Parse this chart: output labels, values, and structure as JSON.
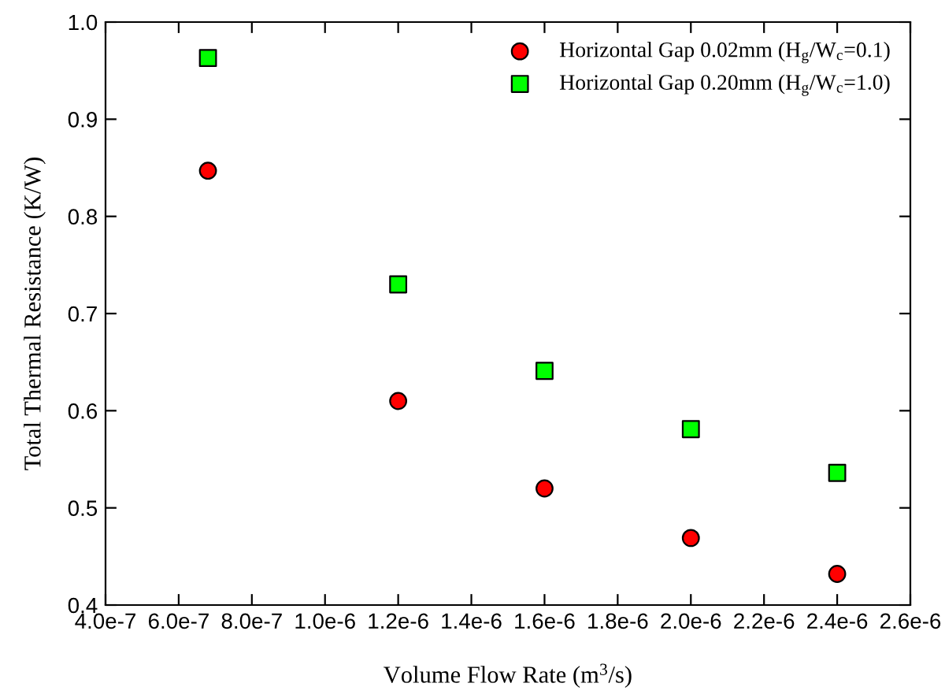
{
  "chart_data": {
    "type": "scatter",
    "xlabel": "Volume Flow Rate (m$^{3}$/s)",
    "ylabel": "Total Thermal Resistance (K/W)",
    "series": [
      {
        "name": "Horizontal Gap 0.02mm (H$_{g}$/W$_{c}$=0.1)",
        "color": "#ff0000",
        "marker": "circle",
        "x": [
          6.8e-07,
          1.2e-06,
          1.6e-06,
          2e-06,
          2.4e-06
        ],
        "values": [
          0.847,
          0.61,
          0.52,
          0.469,
          0.432
        ]
      },
      {
        "name": "Horizontal Gap 0.20mm (H$_{g}$/W$_{c}$=1.0)",
        "color": "#00ff00",
        "marker": "square",
        "x": [
          6.8e-07,
          1.2e-06,
          1.6e-06,
          2e-06,
          2.4e-06
        ],
        "values": [
          0.963,
          0.73,
          0.641,
          0.581,
          0.536
        ]
      }
    ],
    "xlim": [
      4e-07,
      2.6e-06
    ],
    "xticks": [
      {
        "value": 4e-07,
        "label": "4.0e-7"
      },
      {
        "value": 6e-07,
        "label": "6.0e-7"
      },
      {
        "value": 8e-07,
        "label": "8.0e-7"
      },
      {
        "value": 1e-06,
        "label": "1.0e-6"
      },
      {
        "value": 1.2e-06,
        "label": "1.2e-6"
      },
      {
        "value": 1.4e-06,
        "label": "1.4e-6"
      },
      {
        "value": 1.6e-06,
        "label": "1.6e-6"
      },
      {
        "value": 1.8e-06,
        "label": "1.8e-6"
      },
      {
        "value": 2e-06,
        "label": "2.0e-6"
      },
      {
        "value": 2.2e-06,
        "label": "2.2e-6"
      },
      {
        "value": 2.4e-06,
        "label": "2.4e-6"
      },
      {
        "value": 2.6e-06,
        "label": "2.6e-6"
      }
    ],
    "ylim": [
      0.4,
      1.0
    ],
    "yticks": [
      {
        "value": 0.4,
        "label": "0.4"
      },
      {
        "value": 0.5,
        "label": "0.5"
      },
      {
        "value": 0.6,
        "label": "0.6"
      },
      {
        "value": 0.7,
        "label": "0.7"
      },
      {
        "value": 0.8,
        "label": "0.8"
      },
      {
        "value": 0.9,
        "label": "0.9"
      },
      {
        "value": 1.0,
        "label": "1.0"
      }
    ],
    "grid": false,
    "legend": "top right"
  }
}
